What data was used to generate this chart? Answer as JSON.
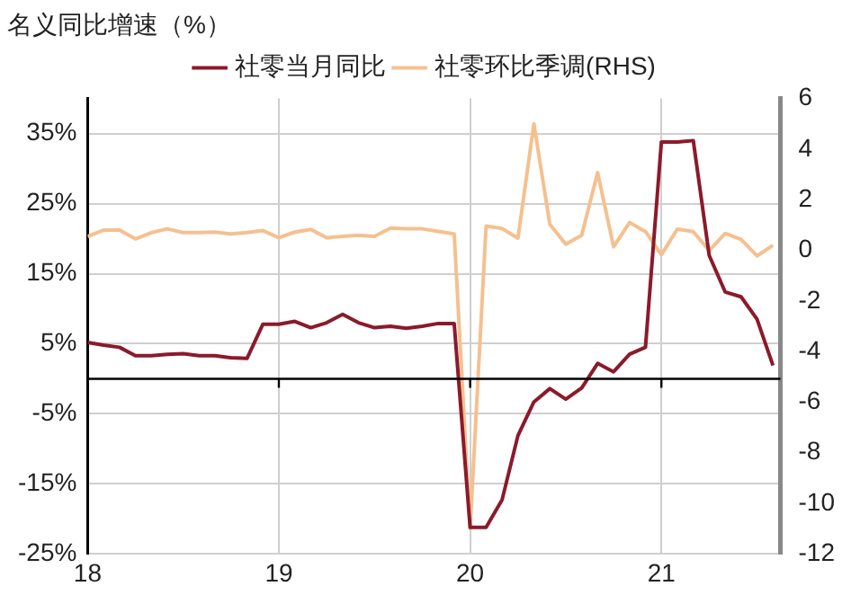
{
  "chart_data": {
    "type": "line",
    "title": "名义同比增速（%）",
    "x": [
      "2018-01",
      "2018-02",
      "2018-03",
      "2018-04",
      "2018-05",
      "2018-06",
      "2018-07",
      "2018-08",
      "2018-09",
      "2018-10",
      "2018-11",
      "2018-12",
      "2019-01",
      "2019-02",
      "2019-03",
      "2019-04",
      "2019-05",
      "2019-06",
      "2019-07",
      "2019-08",
      "2019-09",
      "2019-10",
      "2019-11",
      "2019-12",
      "2020-01",
      "2020-02",
      "2020-03",
      "2020-04",
      "2020-05",
      "2020-06",
      "2020-07",
      "2020-08",
      "2020-09",
      "2020-10",
      "2020-11",
      "2020-12",
      "2021-01",
      "2021-02",
      "2021-03",
      "2021-04",
      "2021-05",
      "2021-06",
      "2021-07",
      "2021-08"
    ],
    "series": [
      {
        "name": "社零当月同比",
        "color": "#8b1a2b",
        "values": [
          5.2,
          4.8,
          4.5,
          3.3,
          3.3,
          3.5,
          3.6,
          3.3,
          3.3,
          3.0,
          2.9,
          7.8,
          7.8,
          8.2,
          7.3,
          8.0,
          9.2,
          8.0,
          7.3,
          7.5,
          7.2,
          7.5,
          7.9,
          7.9,
          -21.2,
          -21.2,
          -17.3,
          -8.1,
          -3.3,
          -1.4,
          -2.9,
          -1.3,
          2.2,
          1.0,
          3.5,
          4.5,
          33.8,
          33.8,
          34.0,
          17.6,
          12.4,
          11.7,
          8.5,
          1.9
        ]
      },
      {
        "name": "社零环比季调(RHS)",
        "color": "#f5c08f",
        "axis": "y2",
        "values": [
          0.55,
          0.8,
          0.8,
          0.45,
          0.7,
          0.85,
          0.7,
          0.7,
          0.72,
          0.65,
          0.7,
          0.78,
          0.5,
          0.72,
          0.83,
          0.5,
          0.55,
          0.6,
          0.55,
          0.88,
          0.85,
          0.85,
          0.75,
          0.65,
          -11.0,
          0.96,
          0.86,
          0.48,
          5.0,
          1.03,
          0.24,
          0.6,
          3.07,
          0.14,
          1.1,
          0.74,
          -0.17,
          0.84,
          0.74,
          -0.01,
          0.67,
          0.43,
          -0.22,
          0.2
        ]
      }
    ],
    "xlim": [
      "2018-01",
      "2021-08-15"
    ],
    "xticks": [
      {
        "value": "2018",
        "label": "18"
      },
      {
        "value": "2019",
        "label": "19"
      },
      {
        "value": "2020",
        "label": "20"
      },
      {
        "value": "2021",
        "label": "21"
      }
    ],
    "ylim": [
      -25,
      40
    ],
    "yticks": [
      {
        "value": -25,
        "label": "-25%"
      },
      {
        "value": -15,
        "label": "-15%"
      },
      {
        "value": -5,
        "label": "-5%"
      },
      {
        "value": 5,
        "label": "5%"
      },
      {
        "value": 15,
        "label": "15%"
      },
      {
        "value": 25,
        "label": "25%"
      },
      {
        "value": 35,
        "label": "35%"
      }
    ],
    "y2lim": [
      -12,
      6
    ],
    "y2ticks": [
      -12,
      -10,
      -8,
      -6,
      -4,
      -2,
      0,
      2,
      4,
      6
    ],
    "ref_lines": [
      {
        "axis": "y",
        "value": 0,
        "color": "#000000"
      }
    ],
    "grid": true,
    "legend": "top",
    "marker": "none",
    "line_style": "solid"
  }
}
